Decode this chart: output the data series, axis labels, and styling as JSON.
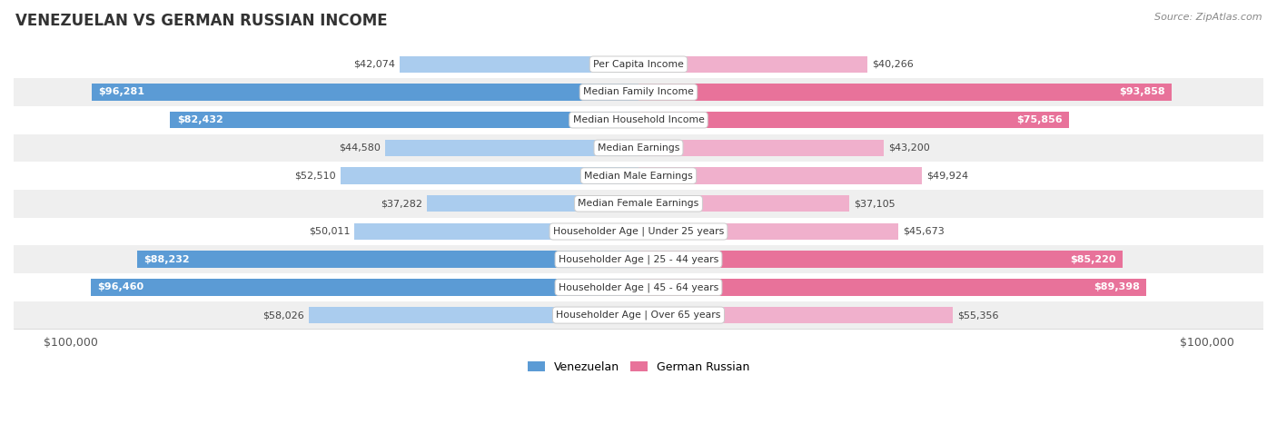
{
  "title": "VENEZUELAN VS GERMAN RUSSIAN INCOME",
  "source": "Source: ZipAtlas.com",
  "categories": [
    "Per Capita Income",
    "Median Family Income",
    "Median Household Income",
    "Median Earnings",
    "Median Male Earnings",
    "Median Female Earnings",
    "Householder Age | Under 25 years",
    "Householder Age | 25 - 44 years",
    "Householder Age | 45 - 64 years",
    "Householder Age | Over 65 years"
  ],
  "venezuelan_values": [
    42074,
    96281,
    82432,
    44580,
    52510,
    37282,
    50011,
    88232,
    96460,
    58026
  ],
  "german_russian_values": [
    40266,
    93858,
    75856,
    43200,
    49924,
    37105,
    45673,
    85220,
    89398,
    55356
  ],
  "venezuelan_labels": [
    "$42,074",
    "$96,281",
    "$82,432",
    "$44,580",
    "$52,510",
    "$37,282",
    "$50,011",
    "$88,232",
    "$96,460",
    "$58,026"
  ],
  "german_russian_labels": [
    "$40,266",
    "$93,858",
    "$75,856",
    "$43,200",
    "$49,924",
    "$37,105",
    "$45,673",
    "$85,220",
    "$89,398",
    "$55,356"
  ],
  "max_value": 100000,
  "ven_color_strong": "#5b9bd5",
  "ven_color_light": "#aaccee",
  "ger_color_strong": "#e8729a",
  "ger_color_light": "#f0b0cc",
  "white_text_thresh": 60000,
  "bar_height": 0.6,
  "legend_label_venezuelan": "Venezuelan",
  "legend_label_german_russian": "German Russian",
  "x_axis_label_left": "$100,000",
  "x_axis_label_right": "$100,000",
  "row_colors": [
    "#ffffff",
    "#efefef"
  ]
}
